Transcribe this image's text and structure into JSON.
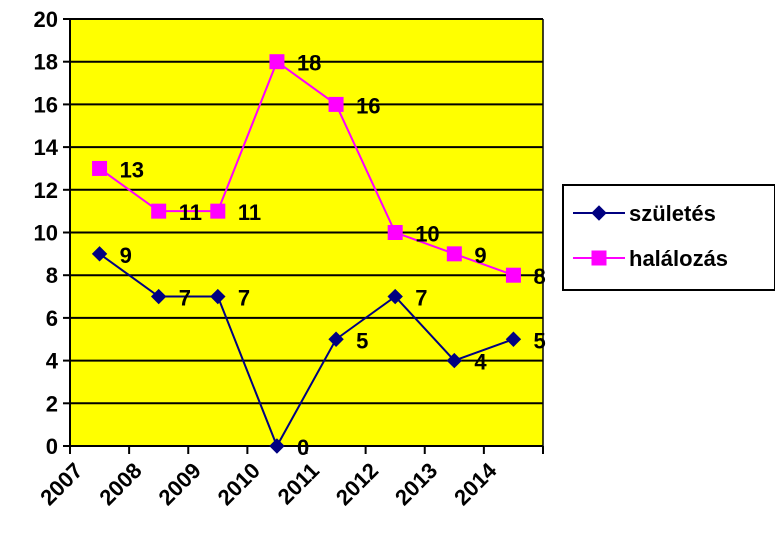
{
  "chart_data": {
    "type": "line",
    "categories": [
      "2007",
      "2008",
      "2009",
      "2010",
      "2011",
      "2012",
      "2013",
      "2014"
    ],
    "series": [
      {
        "name": "születés",
        "values": [
          9,
          7,
          7,
          0,
          5,
          7,
          4,
          5
        ],
        "color": "#000080",
        "marker": "diamond"
      },
      {
        "name": "halálozás",
        "values": [
          13,
          11,
          11,
          18,
          16,
          10,
          9,
          8
        ],
        "color": "#FF00FF",
        "marker": "square"
      }
    ],
    "title": "",
    "xlabel": "",
    "ylabel": "",
    "ylim": [
      0,
      20
    ],
    "y_ticks": [
      "0",
      "2",
      "4",
      "6",
      "8",
      "10",
      "12",
      "14",
      "16",
      "18",
      "20"
    ],
    "grid": true,
    "plot_background": "#FFFF00",
    "legend_position": "right",
    "data_labels": true
  }
}
